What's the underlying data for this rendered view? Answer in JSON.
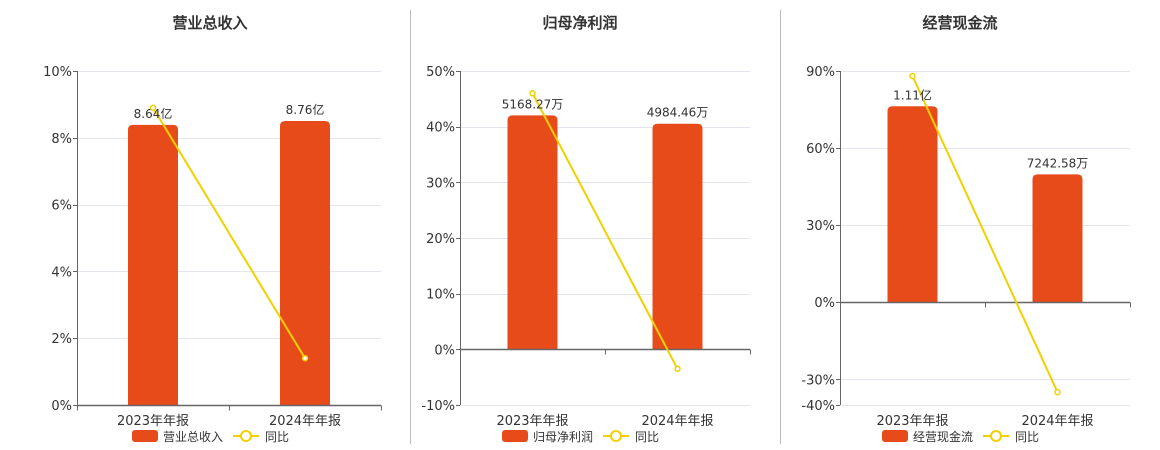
{
  "colors": {
    "bar": "#E84B1A",
    "line": "#F2D000",
    "grid": "#E3E6EE",
    "axis": "#666666",
    "divider": "#BBBBBB"
  },
  "legend": {
    "line_label": "同比"
  },
  "chart_data": [
    {
      "type": "bar",
      "title": "营业总收入",
      "categories": [
        "2023年年报",
        "2024年年报"
      ],
      "bar_series": {
        "name": "营业总收入",
        "values": [
          8.64,
          8.76
        ],
        "unit": "亿",
        "labels": [
          "8.64亿",
          "8.76亿"
        ]
      },
      "line_series": {
        "name": "同比",
        "values": [
          8.9,
          1.4
        ],
        "unit": "%"
      },
      "y_axis": {
        "min": 0,
        "max": 10,
        "ticks": [
          0,
          2,
          4,
          6,
          8,
          10
        ],
        "tick_labels": [
          "0%",
          "2%",
          "4%",
          "6%",
          "8%",
          "10%"
        ]
      },
      "bar_axis_max": 10.3,
      "grid": true
    },
    {
      "type": "bar",
      "title": "归母净利润",
      "categories": [
        "2023年年报",
        "2024年年报"
      ],
      "bar_series": {
        "name": "归母净利润",
        "values": [
          5168.27,
          4984.46
        ],
        "unit": "万",
        "labels": [
          "5168.27万",
          "4984.46万"
        ]
      },
      "line_series": {
        "name": "同比",
        "values": [
          46,
          -3.5
        ],
        "unit": "%"
      },
      "y_axis": {
        "min": -10,
        "max": 50,
        "ticks": [
          -10,
          0,
          10,
          20,
          30,
          40,
          50
        ],
        "tick_labels": [
          "-10%",
          "0%",
          "10%",
          "20%",
          "30%",
          "40%",
          "50%"
        ]
      },
      "bar_axis_max": 6150,
      "grid": true
    },
    {
      "type": "bar",
      "title": "经营现金流",
      "categories": [
        "2023年年报",
        "2024年年报"
      ],
      "bar_series": {
        "name": "经营现金流",
        "values": [
          11100,
          7242.58
        ],
        "unit": "万",
        "labels": [
          "1.11亿",
          "7242.58万"
        ]
      },
      "line_series": {
        "name": "同比",
        "values": [
          88,
          -35
        ],
        "unit": "%"
      },
      "y_axis": {
        "min": -40,
        "max": 90,
        "ticks": [
          -40,
          -30,
          0,
          30,
          60,
          90
        ],
        "tick_labels": [
          "-40%",
          "-30%",
          "0%",
          "30%",
          "60%",
          "90%"
        ]
      },
      "bar_axis_max": 13100,
      "grid": true
    }
  ]
}
